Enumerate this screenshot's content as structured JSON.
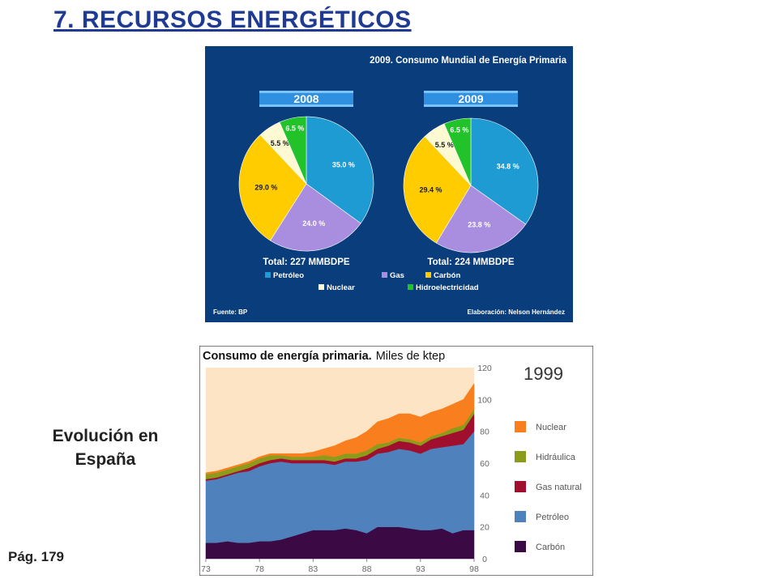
{
  "slide": {
    "title": "7. RECURSOS ENERGÉTICOS",
    "side_label_line1": "Evolución en",
    "side_label_line2": "España",
    "page_ref": "Pág. 179"
  },
  "chart_data": [
    {
      "type": "pie",
      "title": "2009. Consumo Mundial de Energía Primaria",
      "source": "Fuente: BP",
      "credit": "Elaboración: Nelson Hernández",
      "legend": [
        {
          "name": "Petróleo",
          "color": "#1e9bd2"
        },
        {
          "name": "Gas",
          "color": "#a98ee0"
        },
        {
          "name": "Carbón",
          "color": "#ffcc00"
        },
        {
          "name": "Nuclear",
          "color": "#fdf9d2"
        },
        {
          "name": "Hidroelectricidad",
          "color": "#22c22a"
        }
      ],
      "pies": [
        {
          "year": "2008",
          "total_label": "Total: 227 MMBDPE",
          "slices": [
            {
              "name": "Petróleo",
              "value": 35.0,
              "label": "35.0 %"
            },
            {
              "name": "Gas",
              "value": 24.0,
              "label": "24.0 %"
            },
            {
              "name": "Carbón",
              "value": 29.0,
              "label": "29.0 %"
            },
            {
              "name": "Nuclear",
              "value": 5.5,
              "label": "5.5 %"
            },
            {
              "name": "Hidroelectricidad",
              "value": 6.5,
              "label": "6.5 %"
            }
          ]
        },
        {
          "year": "2009",
          "total_label": "Total: 224 MMBDPE",
          "slices": [
            {
              "name": "Petróleo",
              "value": 34.8,
              "label": "34.8 %"
            },
            {
              "name": "Gas",
              "value": 23.8,
              "label": "23.8 %"
            },
            {
              "name": "Carbón",
              "value": 29.4,
              "label": "29.4 %"
            },
            {
              "name": "Nuclear",
              "value": 5.5,
              "label": "5.5 %"
            },
            {
              "name": "Hidroelectricidad",
              "value": 6.5,
              "label": "6.5 %"
            }
          ]
        }
      ]
    },
    {
      "type": "area",
      "title": "Consumo de energía primaria.",
      "subtitle": "Miles de ktep",
      "year_label": "1999",
      "ylim": [
        0,
        120
      ],
      "yticks": [
        0,
        20,
        40,
        60,
        80,
        100,
        120
      ],
      "xlim": [
        1973,
        1998
      ],
      "xticks": [
        {
          "value": 1973,
          "label": "73"
        },
        {
          "value": 1978,
          "label": "78"
        },
        {
          "value": 1983,
          "label": "83"
        },
        {
          "value": 1988,
          "label": "88"
        },
        {
          "value": 1993,
          "label": "93"
        },
        {
          "value": 1998,
          "label": "98"
        }
      ],
      "x": [
        1973,
        1974,
        1975,
        1976,
        1977,
        1978,
        1979,
        1980,
        1981,
        1982,
        1983,
        1984,
        1985,
        1986,
        1987,
        1988,
        1989,
        1990,
        1991,
        1992,
        1993,
        1994,
        1995,
        1996,
        1997,
        1998
      ],
      "series": [
        {
          "name": "Carbón",
          "color": "#3b0a45",
          "values": [
            10,
            10,
            11,
            10,
            10,
            11,
            11,
            12,
            14,
            16,
            18,
            18,
            18,
            19,
            18,
            16,
            20,
            20,
            20,
            19,
            18,
            18,
            19,
            16,
            18,
            18
          ]
        },
        {
          "name": "Petróleo",
          "color": "#4f81bd",
          "values": [
            39,
            40,
            41,
            44,
            45,
            47,
            49,
            49,
            46,
            44,
            42,
            42,
            41,
            42,
            43,
            46,
            46,
            47,
            49,
            49,
            48,
            51,
            51,
            55,
            54,
            62
          ]
        },
        {
          "name": "Gas natural",
          "color": "#a0102e",
          "values": [
            1,
            1,
            1,
            1,
            2,
            2,
            2,
            2,
            2,
            2,
            2,
            2,
            2,
            2,
            2,
            3,
            3,
            4,
            5,
            5,
            5,
            6,
            7,
            8,
            9,
            11
          ]
        },
        {
          "name": "Hidráulica",
          "color": "#8c9b1a",
          "values": [
            3,
            3,
            3,
            3,
            3,
            3,
            3,
            2,
            2,
            2,
            2,
            3,
            3,
            3,
            3,
            3,
            3,
            2,
            2,
            2,
            2,
            2,
            2,
            3,
            3,
            3
          ]
        },
        {
          "name": "Nuclear",
          "color": "#f97f1e",
          "values": [
            1,
            1,
            1,
            1,
            1,
            1,
            1,
            1,
            2,
            2,
            3,
            4,
            7,
            8,
            10,
            12,
            14,
            15,
            15,
            16,
            16,
            15,
            15,
            15,
            16,
            16
          ]
        }
      ],
      "legend": [
        "Nuclear",
        "Hidráulica",
        "Gas natural",
        "Petróleo",
        "Carbón"
      ],
      "background_color": "#fde4c4"
    }
  ]
}
